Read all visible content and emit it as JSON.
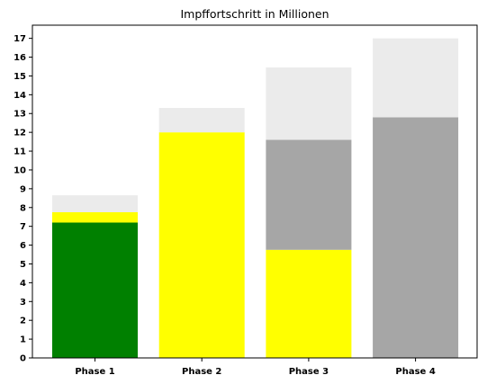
{
  "chart_data": {
    "type": "bar",
    "stacked": true,
    "title": "Impffortschritt in Millionen",
    "xlabel": "",
    "ylabel": "",
    "ylim": [
      0,
      17.7
    ],
    "yticks": [
      0,
      1,
      2,
      3,
      4,
      5,
      6,
      7,
      8,
      9,
      10,
      11,
      12,
      13,
      14,
      15,
      16,
      17
    ],
    "categories": [
      "Phase 1",
      "Phase 2",
      "Phase 3",
      "Phase 4"
    ],
    "grid": false,
    "legend": "none",
    "colors": {
      "green": "#008000",
      "yellow": "#ffff00",
      "gray": "#a6a6a6",
      "light": "#ebebeb"
    },
    "series": [
      {
        "color": "green",
        "values": [
          7.2,
          0,
          0,
          0
        ]
      },
      {
        "color": "yellow",
        "values": [
          0.55,
          12.0,
          5.75,
          0
        ]
      },
      {
        "color": "gray",
        "values": [
          0,
          0,
          5.85,
          12.8
        ]
      },
      {
        "color": "light",
        "values": [
          0.9,
          1.3,
          3.85,
          4.2
        ]
      }
    ]
  }
}
